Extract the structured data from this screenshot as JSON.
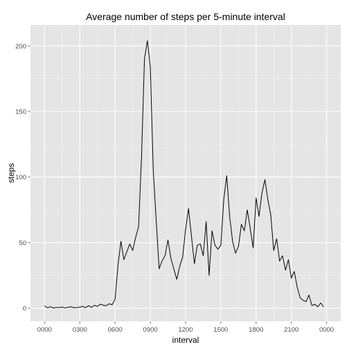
{
  "chart_data": {
    "type": "line",
    "title": "Average number of steps per 5-minute interval",
    "xlabel": "interval",
    "ylabel": "steps",
    "x_tick_labels": [
      "0000",
      "0300",
      "0600",
      "0900",
      "1200",
      "1500",
      "1800",
      "2100",
      "0000"
    ],
    "x_tick_hours": [
      0,
      3,
      6,
      9,
      12,
      15,
      18,
      21,
      24
    ],
    "xlim_hours": [
      -1.2,
      25.2
    ],
    "y_ticks": [
      0,
      50,
      100,
      150,
      200
    ],
    "ylim": [
      -10,
      216
    ],
    "grid": true,
    "panel_background": "#e5e5e5",
    "line_color": "#000000",
    "series": [
      {
        "x_hours": [
          0.0,
          0.25,
          0.5,
          0.75,
          1.0,
          1.25,
          1.5,
          1.75,
          2.0,
          2.25,
          2.5,
          2.75,
          3.0,
          3.25,
          3.5,
          3.75,
          4.0,
          4.25,
          4.5,
          4.75,
          5.0,
          5.25,
          5.5,
          5.75,
          6.0,
          6.25,
          6.5,
          6.75,
          7.0,
          7.25,
          7.5,
          7.75,
          8.0,
          8.25,
          8.5,
          8.75,
          9.0,
          9.25,
          9.5,
          9.75,
          10.0,
          10.25,
          10.5,
          10.75,
          11.0,
          11.25,
          11.5,
          11.75,
          12.0,
          12.25,
          12.5,
          12.75,
          13.0,
          13.25,
          13.5,
          13.75,
          14.0,
          14.25,
          14.5,
          14.75,
          15.0,
          15.25,
          15.5,
          15.75,
          16.0,
          16.25,
          16.5,
          16.75,
          17.0,
          17.25,
          17.5,
          17.75,
          18.0,
          18.25,
          18.5,
          18.75,
          19.0,
          19.25,
          19.5,
          19.75,
          20.0,
          20.25,
          20.5,
          20.75,
          21.0,
          21.25,
          21.5,
          21.75,
          22.0,
          22.25,
          22.5,
          22.75,
          23.0,
          23.25,
          23.5,
          23.75
        ],
        "y": [
          1.7,
          0.3,
          1.2,
          0.1,
          0.6,
          0.4,
          0.9,
          0.2,
          0.7,
          1.1,
          0.3,
          0.5,
          0.8,
          1.3,
          0.4,
          1.9,
          0.6,
          2.2,
          1.4,
          3.1,
          2.2,
          1.9,
          3.4,
          2.6,
          6.8,
          33,
          51,
          37,
          43,
          49,
          44,
          54,
          62,
          115,
          190,
          204,
          184,
          105,
          67,
          30,
          36,
          40,
          52,
          38,
          30,
          22,
          32,
          39,
          60,
          76,
          55,
          34,
          48,
          49,
          40,
          66,
          25,
          59,
          48,
          45,
          48,
          83,
          101,
          70,
          51,
          42,
          47,
          64,
          59,
          75,
          61,
          46,
          84,
          70,
          88,
          98,
          83,
          71,
          44,
          53,
          36,
          40,
          29,
          37,
          23,
          28,
          16,
          8,
          6,
          5,
          10,
          2,
          3,
          1,
          4,
          1
        ]
      }
    ]
  }
}
